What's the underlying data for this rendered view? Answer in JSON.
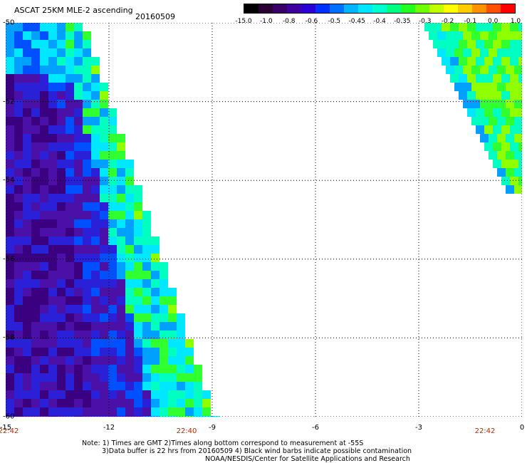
{
  "header": {
    "title": "ASCAT 25KM MLE-2 ascending",
    "date": "20160509"
  },
  "colorbar": {
    "ticks": [
      "-15.0",
      "-1.0",
      "-0.8",
      "-0.6",
      "-0.5",
      "-0.45",
      "-0.4",
      "-0.35",
      "-0.3",
      "-0.2",
      "-0.1",
      "0.0",
      "1.0"
    ],
    "colors": [
      "#000000",
      "#2a0033",
      "#3a006a",
      "#3f00a0",
      "#2a00d6",
      "#0030ff",
      "#0070ff",
      "#00b4ff",
      "#00e6ff",
      "#00ffd0",
      "#00ff80",
      "#20ff20",
      "#70ff00",
      "#c0ff00",
      "#ffff00",
      "#ffcc00",
      "#ff9000",
      "#ff5000",
      "#ff0000"
    ]
  },
  "map": {
    "x_axis_labels": [
      "-15",
      "-12",
      "-9",
      "-6",
      "-3",
      "0"
    ],
    "y_axis_labels": [
      "-50",
      "-52",
      "-54",
      "-56",
      "-58",
      "-60"
    ],
    "x_range": [
      -15,
      0
    ],
    "y_range": [
      -60,
      -50
    ],
    "grid": true,
    "gridline_style": "dotted",
    "swath_colors": [
      "#3a0080",
      "#4a10a8",
      "#2a20d8",
      "#0050ff",
      "#00a0ff",
      "#00e8ff",
      "#00ffc0",
      "#30ff30",
      "#90ff00"
    ]
  },
  "pass_times": [
    "22:42",
    "22:40",
    "22:42"
  ],
  "notes": [
    "Note: 1) Times are GMT 2)Times along bottom correspond to measurement at -55S",
    "3)Data buffer is 22 hrs from 20160509 4) Black wind barbs indicate possible contamination",
    "NOAA/NESDIS/Center for Satellite Applications and Research"
  ]
}
